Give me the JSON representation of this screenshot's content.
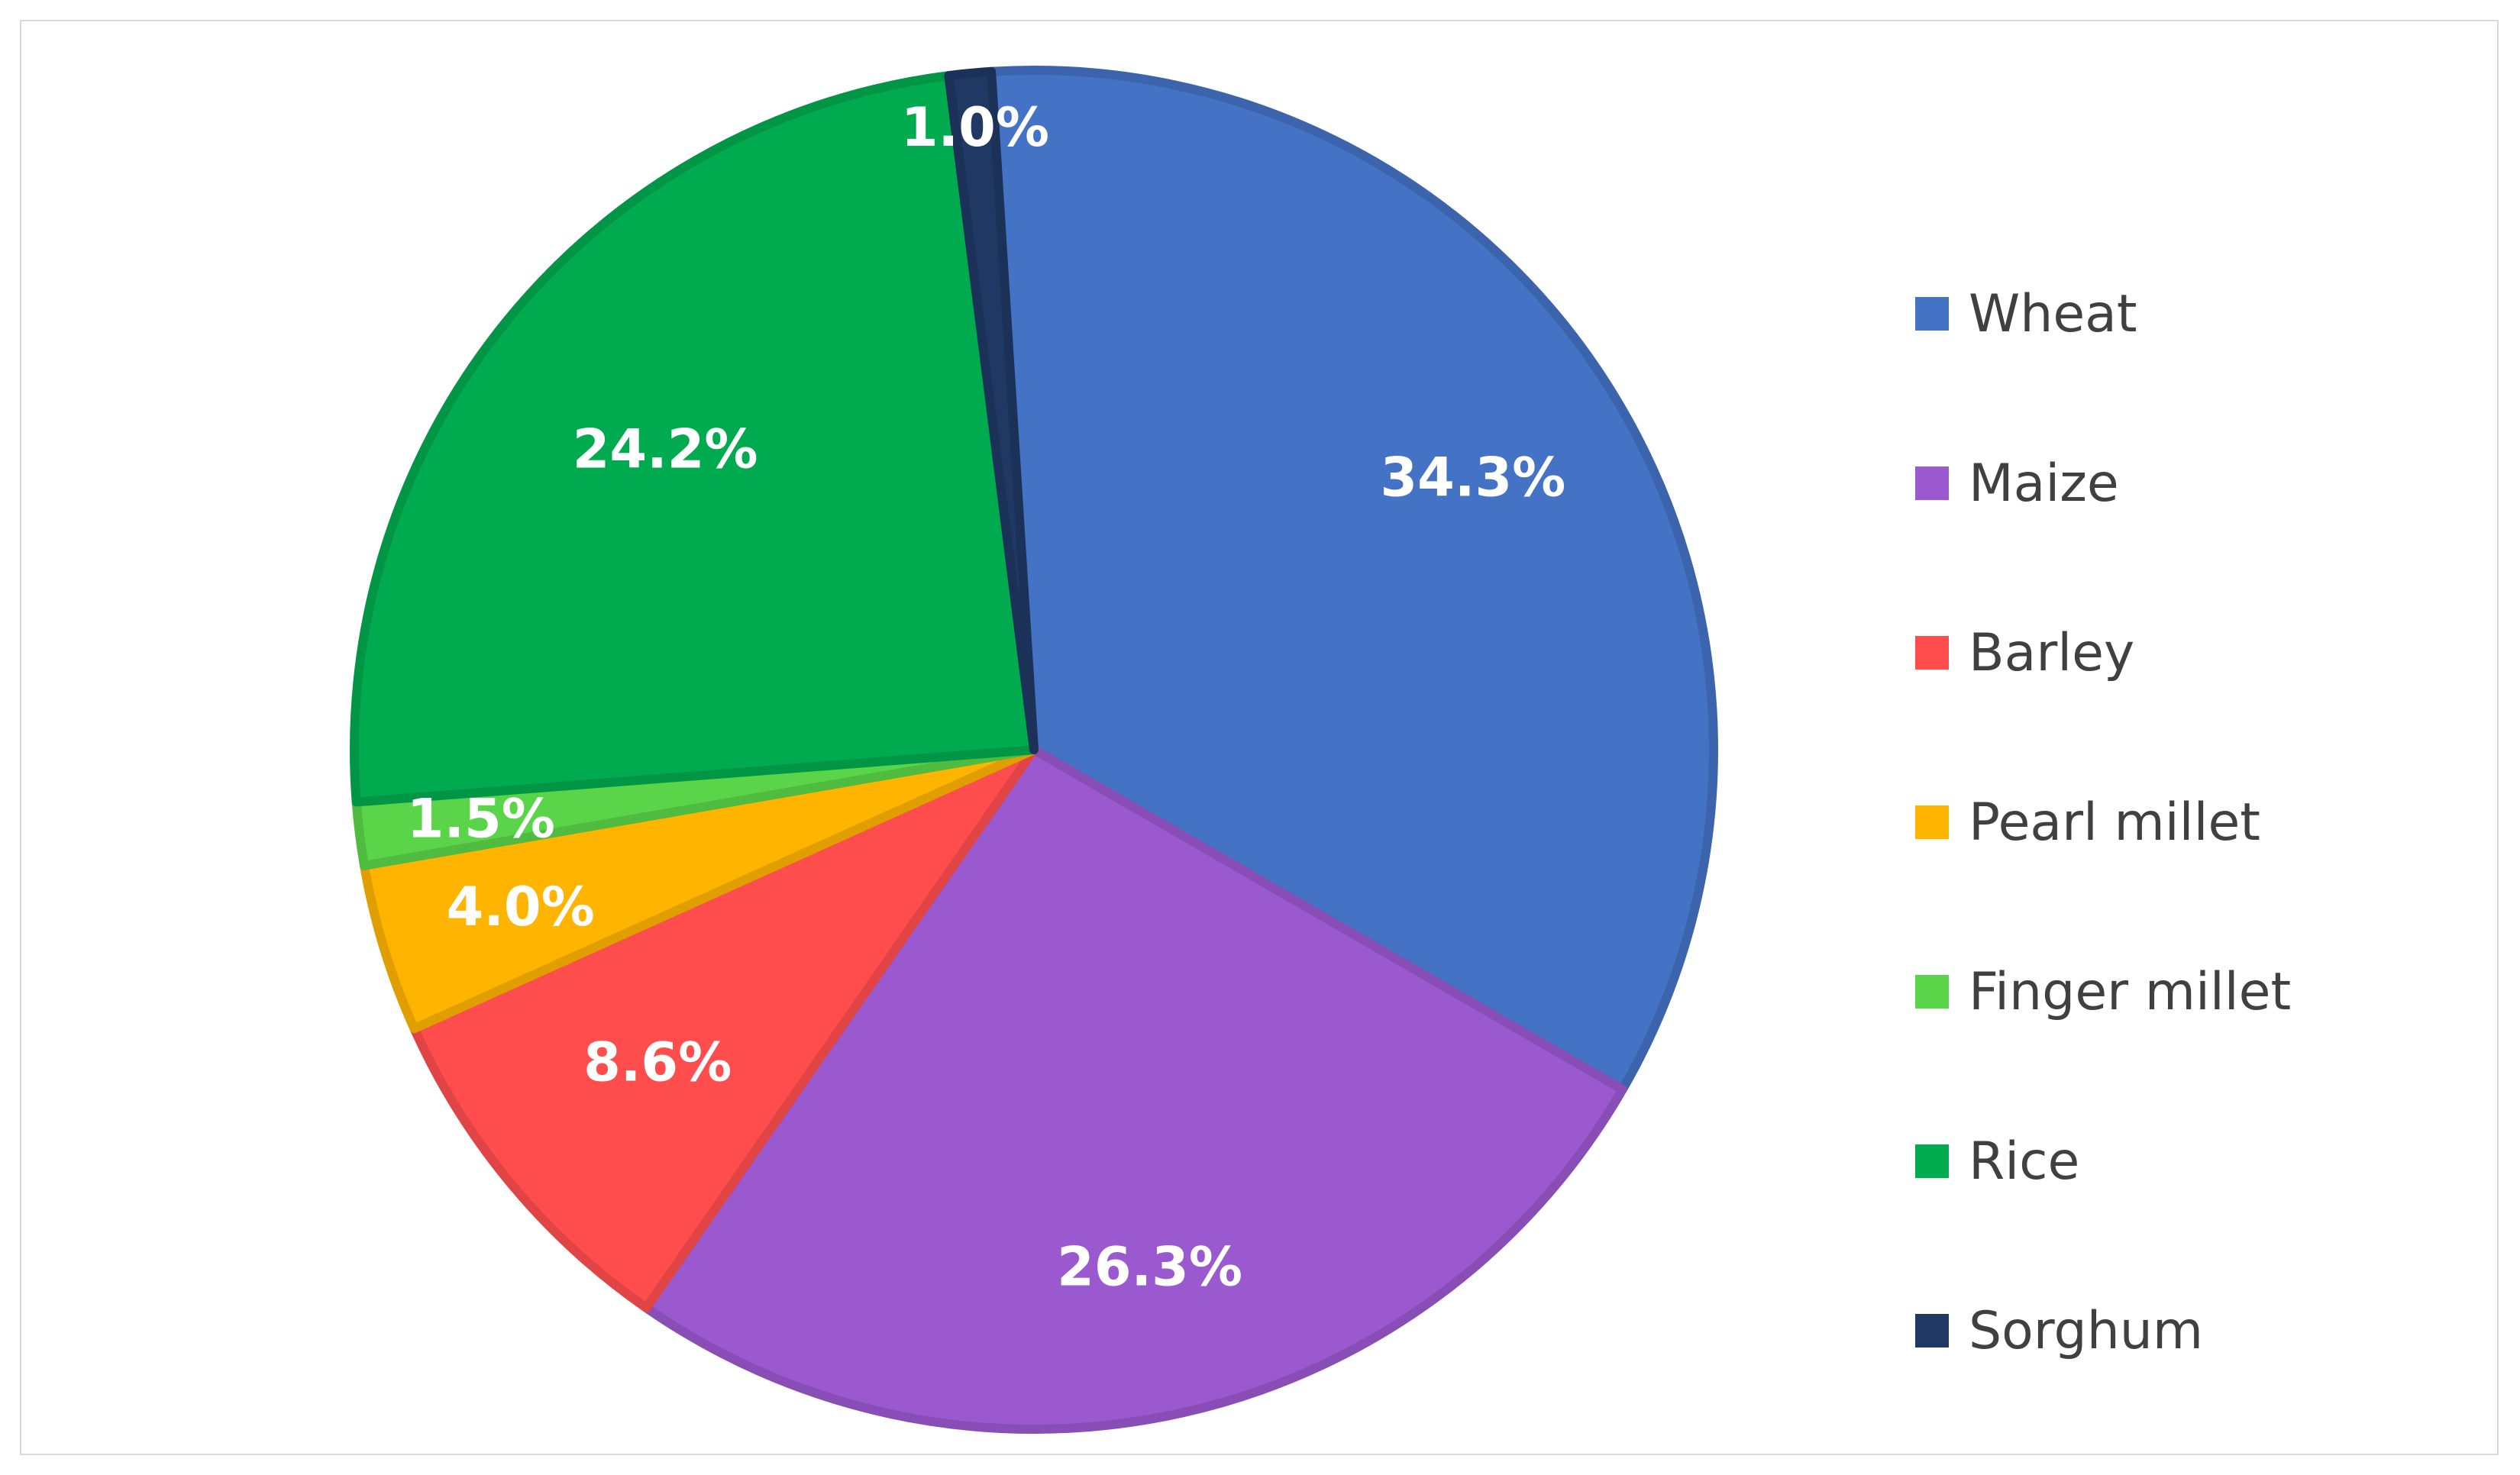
{
  "chart_data": {
    "type": "pie",
    "title": "",
    "start_angle_deg": -3.6,
    "direction": "clockwise",
    "legend_position": "right",
    "slices": [
      {
        "name": "Wheat",
        "value": 34.3,
        "label": "34.3%",
        "color": "#4472C4"
      },
      {
        "name": "Maize",
        "value": 26.3,
        "label": "26.3%",
        "color": "#9B59CF"
      },
      {
        "name": "Barley",
        "value": 8.6,
        "label": "8.6%",
        "color": "#FF4D4D"
      },
      {
        "name": "Pearl millet",
        "value": 4.0,
        "label": "4.0%",
        "color": "#FFB400"
      },
      {
        "name": "Finger millet",
        "value": 1.5,
        "label": "1.5%",
        "color": "#5AD448"
      },
      {
        "name": "Rice",
        "value": 24.2,
        "label": "24.2%",
        "color": "#00AB4F"
      },
      {
        "name": "Sorghum",
        "value": 1.0,
        "label": "1.0%",
        "color": "#203864"
      }
    ]
  }
}
